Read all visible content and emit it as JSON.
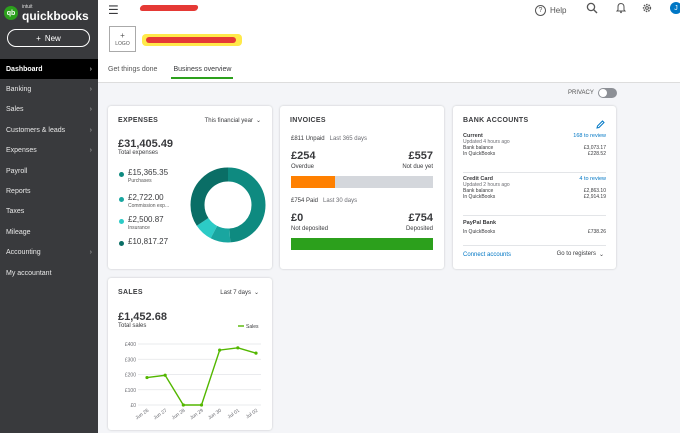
{
  "brand": {
    "small": "intuit",
    "name": "quickbooks",
    "mark": "qb"
  },
  "new_button": {
    "icon": "plus",
    "label": "New"
  },
  "sidebar": {
    "items": [
      {
        "label": "Dashboard",
        "active": true,
        "has_chevron": true
      },
      {
        "label": "Banking",
        "has_chevron": true
      },
      {
        "label": "Sales",
        "has_chevron": true
      },
      {
        "label": "Customers & leads",
        "has_chevron": true
      },
      {
        "label": "Expenses",
        "has_chevron": true
      },
      {
        "label": "Payroll",
        "has_chevron": false
      },
      {
        "label": "Reports",
        "has_chevron": false
      },
      {
        "label": "Taxes",
        "has_chevron": false
      },
      {
        "label": "Mileage",
        "has_chevron": false
      },
      {
        "label": "Accounting",
        "has_chevron": true
      },
      {
        "label": "My accountant",
        "has_chevron": false
      }
    ]
  },
  "topbar": {
    "help_label": "Help",
    "avatar_initial": "J"
  },
  "header": {
    "logo_plus": "+",
    "logo_label": "LOGO",
    "tabs": [
      {
        "label": "Get things done",
        "active": false
      },
      {
        "label": "Business overview",
        "active": true
      }
    ]
  },
  "privacy": {
    "label": "PRIVACY"
  },
  "expenses": {
    "title": "EXPENSES",
    "period": "This financial year",
    "total": "£31,405.49",
    "total_label": "Total expenses",
    "items": [
      {
        "value": "£15,365.35",
        "category": "Purchases",
        "share": 15365.35,
        "color": "#0e8a80"
      },
      {
        "value": "£2,722.00",
        "category": "Commission exp...",
        "share": 2722.0,
        "color": "#19a6a0"
      },
      {
        "value": "£2,500.87",
        "category": "Insurance",
        "share": 2500.87,
        "color": "#2ccbc6"
      },
      {
        "value": "£10,817.27",
        "category": "",
        "share": 10817.27,
        "color": "#0a6e66"
      }
    ]
  },
  "invoices": {
    "title": "INVOICES",
    "unpaid": "£811 Unpaid",
    "unpaid_period": "Last 365 days",
    "overdue_amount": "£254",
    "overdue_label": "Overdue",
    "not_due_amount": "£557",
    "not_due_label": "Not due yet",
    "paid": "£754 Paid",
    "paid_period": "Last 30 days",
    "not_deposited_amount": "£0",
    "not_deposited_label": "Not deposited",
    "deposited_amount": "£754",
    "deposited_label": "Deposited",
    "overdue_fraction": 0.313,
    "deposited_fraction": 1.0,
    "colors": {
      "overdue": "#ff8000",
      "not_due": "#d4d7dc",
      "deposited": "#2ca01c"
    }
  },
  "bank": {
    "title": "BANK ACCOUNTS",
    "accounts": [
      {
        "name": "Current",
        "review": "168 to review",
        "updated": "Updated 4 hours ago",
        "bank_label": "Bank balance",
        "bank_value": "£3,073.17",
        "qb_label": "In QuickBooks",
        "qb_value": "£228.52"
      },
      {
        "name": "Credit Card",
        "review": "4 to review",
        "updated": "Updated 2 hours ago",
        "bank_label": "Bank balance",
        "bank_value": "£2,863.10",
        "qb_label": "In QuickBooks",
        "qb_value": "£2,914.19"
      },
      {
        "name": "PayPal Bank",
        "review": "",
        "updated": "",
        "bank_label": "",
        "bank_value": "",
        "qb_label": "In QuickBooks",
        "qb_value": "£738.26"
      }
    ],
    "connect_label": "Connect accounts",
    "registers_label": "Go to registers"
  },
  "sales": {
    "title": "SALES",
    "period": "Last 7 days",
    "total": "£1,452.68",
    "total_label": "Total sales",
    "legend": "Sales",
    "color": "#53b700"
  },
  "chart_data": {
    "type": "line",
    "title": "",
    "xlabel": "",
    "ylabel": "",
    "categories": [
      "Jun 26",
      "Jun 27",
      "Jun 28",
      "Jun 29",
      "Jun 30",
      "Jul 01",
      "Jul 02"
    ],
    "series": [
      {
        "name": "Sales",
        "values": [
          180,
          195,
          0,
          0,
          360,
          375,
          340
        ]
      }
    ],
    "y_ticks": [
      "£400",
      "£300",
      "£200",
      "£100",
      "£0"
    ],
    "ylim": [
      0,
      400
    ],
    "grid": true,
    "legend": "top-right"
  }
}
